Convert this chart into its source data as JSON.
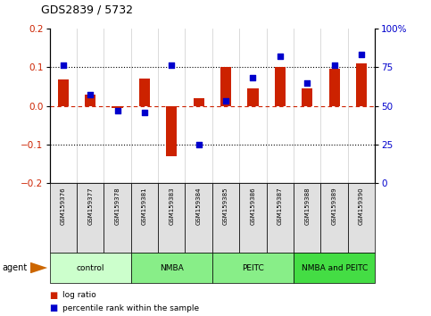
{
  "title": "GDS2839 / 5732",
  "samples": [
    "GSM159376",
    "GSM159377",
    "GSM159378",
    "GSM159381",
    "GSM159383",
    "GSM159384",
    "GSM159385",
    "GSM159386",
    "GSM159387",
    "GSM159388",
    "GSM159389",
    "GSM159390"
  ],
  "log_ratio": [
    0.068,
    0.028,
    -0.005,
    0.07,
    -0.13,
    0.02,
    0.1,
    0.045,
    0.1,
    0.045,
    0.095,
    0.11
  ],
  "percentile": [
    76,
    57,
    47,
    46,
    76,
    25,
    53,
    68,
    82,
    65,
    76,
    83
  ],
  "bar_color": "#cc2200",
  "dot_color": "#0000cc",
  "ylim_left": [
    -0.2,
    0.2
  ],
  "ylim_right": [
    0,
    100
  ],
  "yticks_left": [
    -0.2,
    -0.1,
    0.0,
    0.1,
    0.2
  ],
  "yticks_right": [
    0,
    25,
    50,
    75,
    100
  ],
  "groups": [
    {
      "label": "control",
      "start": 0,
      "end": 3,
      "color": "#ccffcc"
    },
    {
      "label": "NMBA",
      "start": 3,
      "end": 6,
      "color": "#88ee88"
    },
    {
      "label": "PEITC",
      "start": 6,
      "end": 9,
      "color": "#88ee88"
    },
    {
      "label": "NMBA and PEITC",
      "start": 9,
      "end": 12,
      "color": "#44dd44"
    }
  ],
  "agent_label": "agent",
  "legend_log_ratio": "log ratio",
  "legend_percentile": "percentile rank within the sample",
  "bar_color_red": "#cc2200",
  "dot_color_blue": "#0000cc",
  "right_tick_labels": [
    "0",
    "25",
    "50",
    "75",
    "100%"
  ]
}
